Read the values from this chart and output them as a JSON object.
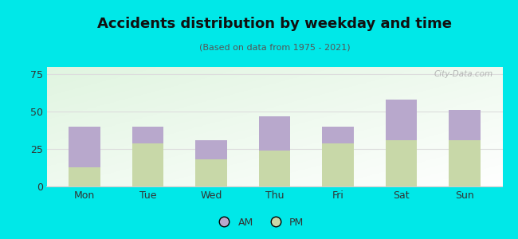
{
  "categories": [
    "Mon",
    "Tue",
    "Wed",
    "Thu",
    "Fri",
    "Sat",
    "Sun"
  ],
  "pm_values": [
    13,
    29,
    18,
    24,
    29,
    31,
    31
  ],
  "am_values": [
    27,
    11,
    13,
    23,
    11,
    27,
    20
  ],
  "am_color": "#b8a8cc",
  "pm_color": "#c8d8a8",
  "title": "Accidents distribution by weekday and time",
  "subtitle": "(Based on data from 1975 - 2021)",
  "ylim": [
    0,
    80
  ],
  "yticks": [
    0,
    25,
    50,
    75
  ],
  "background_color": "#00e8e8",
  "watermark": "City-Data.com",
  "legend_am": "AM",
  "legend_pm": "PM"
}
